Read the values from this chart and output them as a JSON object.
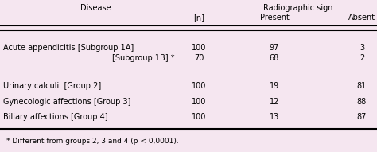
{
  "bg_color": "#f5e6f0",
  "rows": [
    [
      "Acute appendicitis [Subgroup 1A]",
      "100",
      "97",
      "3"
    ],
    [
      "[Subgroup 1B] *",
      "70",
      "68",
      "2"
    ],
    [
      "Urinary calculi  [Group 2]",
      "100",
      "19",
      "81"
    ],
    [
      "Gynecologic affections [Group 3]",
      "100",
      "12",
      "88"
    ],
    [
      "Biliary affections [Group 4]",
      "100",
      "13",
      "87"
    ]
  ],
  "footnote": "* Different from groups 2, 3 and 4 (p < 0,0001).",
  "header_fontsize": 7.0,
  "row_fontsize": 7.0,
  "footnote_fontsize": 6.5
}
